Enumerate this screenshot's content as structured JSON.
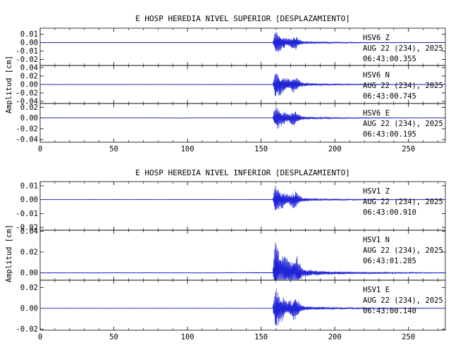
{
  "chart_data": [
    {
      "type": "line",
      "title": "E HOSP HEREDIA NIVEL SUPERIOR [DESPLAZAMIENTO]",
      "ylabel": "Amplitud [cm]",
      "xlim": [
        0,
        275
      ],
      "x_ticks": [
        "0",
        "50",
        "100",
        "150",
        "200",
        "250"
      ],
      "event_onset_x": 158,
      "line_color": "#1f24d6",
      "traces": [
        {
          "station": "HSV6",
          "component": "Z",
          "date": "AUG 22 (234), 2025",
          "time": "06:43:00.355",
          "ylim": [
            -0.027,
            0.017
          ],
          "yticks": [
            "0.01",
            "0.00",
            "-0.01",
            "-0.02"
          ],
          "peak": 0.016
        },
        {
          "station": "HSV6",
          "component": "N",
          "date": "AUG 22 (234), 2025",
          "time": "06:43:00.745",
          "ylim": [
            -0.045,
            0.045
          ],
          "yticks": [
            "0.04",
            "0.02",
            "0.00",
            "-0.02",
            "-0.04"
          ],
          "peak": 0.038
        },
        {
          "station": "HSV6",
          "component": "E",
          "date": "AUG 22 (234), 2025",
          "time": "06:43:00.195",
          "ylim": [
            -0.045,
            0.027
          ],
          "yticks": [
            "0.02",
            "0.00",
            "-0.02",
            "-0.04"
          ],
          "peak": 0.026
        }
      ]
    },
    {
      "type": "line",
      "title": "E HOSP HEREDIA NIVEL INFERIOR [DESPLAZAMIENTO]",
      "ylabel": "Amplitud [cm]",
      "xlim": [
        0,
        275
      ],
      "x_ticks": [
        "0",
        "50",
        "100",
        "150",
        "200",
        "250"
      ],
      "event_onset_x": 158,
      "line_color": "#1f24d6",
      "traces": [
        {
          "station": "HSV1",
          "component": "Z",
          "date": "AUG 22 (234), 2025",
          "time": "06:43:00.910",
          "ylim": [
            -0.022,
            0.013
          ],
          "yticks": [
            "0.01",
            "0.00",
            "-0.01",
            "-0.02"
          ],
          "peak": 0.012
        },
        {
          "station": "HSV1",
          "component": "N",
          "date": "AUG 22 (234), 2025",
          "time": "06:43:01.285",
          "ylim": [
            -0.007,
            0.041
          ],
          "yticks": [
            "0.04",
            "0.02",
            "0.00"
          ],
          "peak": 0.038
        },
        {
          "station": "HSV1",
          "component": "E",
          "date": "AUG 22 (234), 2025",
          "time": "06:43:00.140",
          "ylim": [
            -0.021,
            0.027
          ],
          "yticks": [
            "0.02",
            "0.00",
            "-0.02"
          ],
          "peak": 0.022
        }
      ]
    }
  ]
}
